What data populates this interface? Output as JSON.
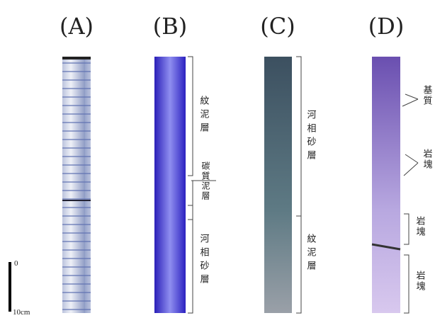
{
  "panels": [
    {
      "label": "(A)"
    },
    {
      "label": "(B)",
      "annotations": [
        "紋泥層",
        "碳質泥層",
        "河相砂層"
      ]
    },
    {
      "label": "(C)",
      "annotations": [
        "河相砂層",
        "紋泥層"
      ]
    },
    {
      "label": "(D)",
      "annotations": [
        "基質",
        "岩塊",
        "岩塊",
        "岩塊"
      ]
    }
  ],
  "scale": {
    "top": "0",
    "bottom": "10cm"
  }
}
